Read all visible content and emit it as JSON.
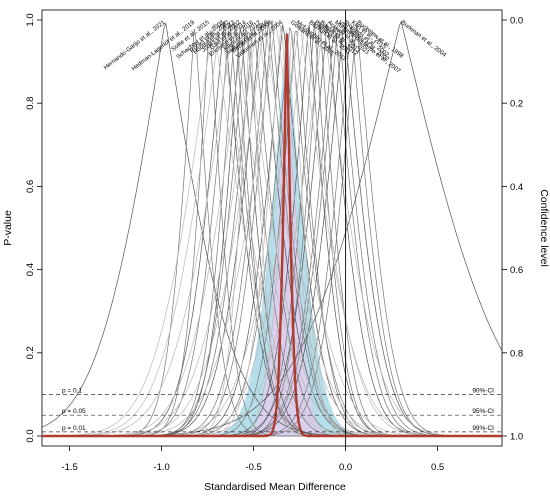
{
  "chart_data": {
    "type": "line",
    "title": "",
    "xlabel": "Standardised Mean Difference",
    "ylabel": "P-value",
    "ylabel_right": "Confidence level",
    "xlim": [
      -1.65,
      0.85
    ],
    "ylim": [
      0,
      1.0
    ],
    "x_ticks": [
      -1.5,
      -1.0,
      -0.5,
      0.0,
      0.5
    ],
    "x_tick_labels": [
      "-1.5",
      "-1.0",
      "-0.5",
      "0.0",
      "0.5"
    ],
    "y_ticks": [
      0.0,
      0.2,
      0.4,
      0.6,
      0.8,
      1.0
    ],
    "y_tick_labels": [
      "0.0",
      "0.2",
      "0.4",
      "0.6",
      "0.8",
      "1.0"
    ],
    "y2_ticks": [
      1.0,
      0.8,
      0.6,
      0.4,
      0.2,
      0.0
    ],
    "y2_tick_labels": [
      "0.0",
      "0.2",
      "0.4",
      "0.6",
      "0.8",
      "1.0"
    ],
    "reference_lines": [
      {
        "p": 0.1,
        "left_label": "p = 0.1",
        "right_label": "90%-CI"
      },
      {
        "p": 0.05,
        "left_label": "p = 0.05",
        "right_label": "95%-CI"
      },
      {
        "p": 0.01,
        "left_label": "p = 0.01",
        "right_label": "99%-CI"
      }
    ],
    "null_line_x": 0.0,
    "pooled": {
      "estimate": -0.32,
      "ci95": [
        -0.38,
        -0.26
      ],
      "color": "#b03a2e"
    },
    "prediction_band": {
      "estimate": -0.32,
      "ci95": [
        -0.58,
        -0.06
      ],
      "color": "#a8d8e6"
    },
    "inner_band": {
      "estimate": -0.32,
      "ci95": [
        -0.47,
        -0.17
      ],
      "color": "#f4c6f0"
    },
    "studies": [
      {
        "name": "Hernando-Garijo et al., 2021",
        "estimate": -0.98,
        "ci95": [
          -1.55,
          -0.41
        ],
        "label": true
      },
      {
        "name": "Hedman-Lagerlöf et al., 2019",
        "estimate": -0.82,
        "ci95": [
          -1.05,
          -0.59
        ],
        "label": true
      },
      {
        "name": "Sollie et al., 2015",
        "estimate": -0.74,
        "ci95": [
          -0.95,
          -0.53
        ],
        "label": true
      },
      {
        "name": "Schachter et al., 2003",
        "estimate": -0.66,
        "ci95": [
          -0.98,
          -0.34
        ],
        "label": true
      },
      {
        "name": "Rooks et al., 2007",
        "estimate": -0.63,
        "ci95": [
          -0.93,
          -0.33
        ],
        "label": true
      },
      {
        "name": "Hooten et al., 2012",
        "estimate": -0.6,
        "ci95": [
          -0.85,
          -0.35
        ],
        "label": true
      },
      {
        "name": "Jones et al., 2002",
        "estimate": -0.57,
        "ci95": [
          -0.83,
          -0.31
        ],
        "label": true
      },
      {
        "name": "Gavi et al., 2014",
        "estimate": -0.54,
        "ci95": [
          -0.84,
          -0.24
        ],
        "label": true
      },
      {
        "name": "Ericsson et al., 2016",
        "estimate": -0.5,
        "ci95": [
          -0.82,
          -0.18
        ],
        "label": true
      },
      {
        "name": "Kayo et al., 2012",
        "estimate": -0.46,
        "ci95": [
          -0.8,
          -0.12
        ],
        "label": true
      },
      {
        "name": "Sañudo et al., 2010",
        "estimate": -0.42,
        "ci95": [
          -0.74,
          -0.1
        ],
        "label": true
      },
      {
        "name": "Bircan et al., 2008",
        "estimate": -0.4,
        "ci95": [
          -0.71,
          -0.09
        ],
        "label": true
      },
      {
        "name": "Valkeinen et al., 2004",
        "estimate": -0.34,
        "ci95": [
          -0.66,
          -0.02
        ],
        "label": true
      },
      {
        "name": "Gowans et al., 2001",
        "estimate": -0.3,
        "ci95": [
          -0.62,
          0.02
        ],
        "label": true
      },
      {
        "name": "McLoughlin et al., 2011",
        "estimate": -0.27,
        "ci95": [
          -0.54,
          0.0
        ],
        "label": true
      },
      {
        "name": "Bozkurt et al., 2011",
        "estimate": -0.2,
        "ci95": [
          -0.47,
          0.07
        ],
        "label": true
      },
      {
        "name": "Baptista et al., 2012",
        "estimate": -0.17,
        "ci95": [
          -0.42,
          0.08
        ],
        "label": true
      },
      {
        "name": "Bardal et al., 2013",
        "estimate": -0.14,
        "ci95": [
          -0.39,
          0.11
        ],
        "label": true
      },
      {
        "name": "Arakaki et al., 2021",
        "estimate": -0.1,
        "ci95": [
          -0.42,
          0.22
        ],
        "label": true
      },
      {
        "name": "Munguía-Izquierdo et al., 2007",
        "estimate": -0.06,
        "ci95": [
          -0.37,
          0.25
        ],
        "label": true
      },
      {
        "name": "Van Santen et al., 2002",
        "estimate": -0.04,
        "ci95": [
          -0.36,
          0.28
        ],
        "label": true
      },
      {
        "name": "Richards et al., 2002",
        "estimate": -0.01,
        "ci95": [
          -0.34,
          0.32
        ],
        "label": true
      },
      {
        "name": "Kurt et al., 2015",
        "estimate": 0.03,
        "ci95": [
          -0.27,
          0.33
        ],
        "label": true
      },
      {
        "name": "Buckelew et al., 1998",
        "estimate": 0.06,
        "ci95": [
          -0.24,
          0.36
        ],
        "label": true
      },
      {
        "name": "Burkman et al., 2004",
        "estimate": 0.3,
        "ci95": [
          -0.55,
          1.15
        ],
        "label": true
      },
      {
        "name": "",
        "estimate": -0.72,
        "ci95": [
          -1.2,
          -0.24
        ],
        "label": false
      },
      {
        "name": "",
        "estimate": -0.68,
        "ci95": [
          -1.15,
          -0.21
        ],
        "label": false
      },
      {
        "name": "",
        "estimate": -0.61,
        "ci95": [
          -1.1,
          -0.12
        ],
        "label": false
      },
      {
        "name": "",
        "estimate": -0.55,
        "ci95": [
          -1.0,
          -0.1
        ],
        "label": false
      },
      {
        "name": "",
        "estimate": -0.48,
        "ci95": [
          -0.95,
          -0.01
        ],
        "label": false
      },
      {
        "name": "",
        "estimate": -0.44,
        "ci95": [
          -0.9,
          0.02
        ],
        "label": false
      },
      {
        "name": "",
        "estimate": -0.38,
        "ci95": [
          -0.85,
          0.09
        ],
        "label": false
      },
      {
        "name": "",
        "estimate": -0.25,
        "ci95": [
          -0.7,
          0.2
        ],
        "label": false
      },
      {
        "name": "",
        "estimate": -0.22,
        "ci95": [
          -0.62,
          0.18
        ],
        "label": false
      },
      {
        "name": "",
        "estimate": -0.12,
        "ci95": [
          -0.55,
          0.31
        ],
        "label": false
      },
      {
        "name": "",
        "estimate": -0.35,
        "ci95": [
          -0.6,
          -0.1
        ],
        "label": false
      },
      {
        "name": "",
        "estimate": -0.52,
        "ci95": [
          -0.7,
          -0.34
        ],
        "label": false
      },
      {
        "name": "",
        "estimate": -0.29,
        "ci95": [
          -0.48,
          -0.1
        ],
        "label": false
      }
    ]
  }
}
